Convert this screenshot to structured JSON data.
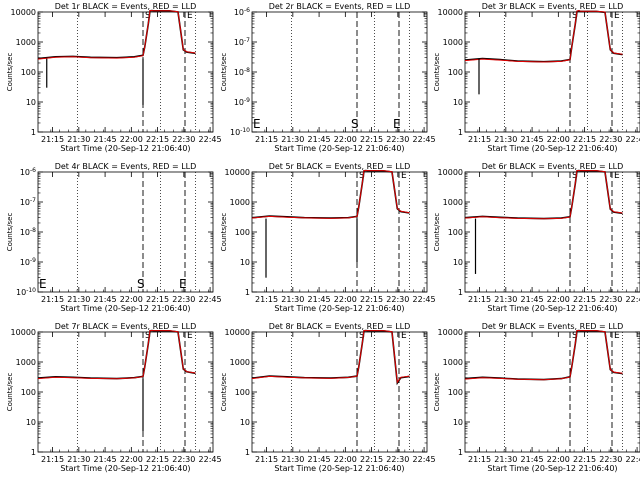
{
  "figure": {
    "x_axis_label": "Start Time (20-Sep-12 21:06:40)",
    "y_axis_label": "Counts/sec",
    "black_series_name": "Events",
    "red_series_name": "LLD",
    "line_colors": {
      "events": "#000000",
      "lld": "#e00000"
    },
    "x_ticks": [
      "21:15",
      "21:30",
      "21:45",
      "22:00",
      "22:15",
      "22:30",
      "22:45"
    ]
  },
  "chart_data": [
    {
      "type": "line",
      "title": "Det 1r BLACK = Events, RED = LLD",
      "scale": "log",
      "ylim": [
        1,
        10000
      ],
      "y_ticks": [
        "1",
        "10",
        "100",
        "1000",
        "10000"
      ],
      "markers": [
        "S",
        "E"
      ],
      "has_data": true,
      "x_minutes": [
        0,
        10,
        20,
        30,
        45,
        55,
        60,
        61,
        63,
        64,
        65,
        66,
        75,
        80,
        83,
        85,
        90
      ],
      "series": [
        {
          "name": "Events",
          "values": [
            280,
            320,
            330,
            310,
            300,
            320,
            360,
            700,
            4000,
            11000,
            11500,
            11000,
            11000,
            10000,
            550,
            460,
            420
          ]
        },
        {
          "name": "LLD",
          "values": [
            270,
            310,
            320,
            300,
            290,
            310,
            350,
            700,
            4100,
            11200,
            11600,
            11000,
            11000,
            10200,
            560,
            470,
            430
          ]
        }
      ],
      "dropouts": [
        {
          "x": 5,
          "y": 30
        },
        {
          "x": 60,
          "y": 8
        }
      ]
    },
    {
      "type": "line",
      "title": "Det 2r BLACK = Events, RED = LLD",
      "scale": "log",
      "ylim": [
        1e-10,
        1e-06
      ],
      "y_ticks": [
        "10^-10",
        "10^-9",
        "10^-8",
        "10^-7",
        "10^-6"
      ],
      "markers": [
        "S",
        "E"
      ],
      "has_data": false,
      "x_minutes": [],
      "series": []
    },
    {
      "type": "line",
      "title": "Det 3r BLACK = Events, RED = LLD",
      "scale": "log",
      "ylim": [
        1,
        10000
      ],
      "y_ticks": [
        "1",
        "10",
        "100",
        "1000",
        "10000"
      ],
      "markers": [
        "S",
        "E"
      ],
      "has_data": true,
      "x_minutes": [
        0,
        10,
        20,
        30,
        45,
        55,
        60,
        61,
        63,
        64,
        65,
        66,
        75,
        80,
        83,
        85,
        90
      ],
      "series": [
        {
          "name": "Events",
          "values": [
            250,
            280,
            260,
            230,
            220,
            230,
            260,
            700,
            4000,
            10500,
            11000,
            10500,
            10500,
            9800,
            550,
            420,
            380
          ]
        },
        {
          "name": "LLD",
          "values": [
            240,
            270,
            250,
            225,
            215,
            225,
            255,
            710,
            4100,
            10800,
            11200,
            10600,
            10600,
            10000,
            560,
            430,
            390
          ]
        }
      ],
      "dropouts": [
        {
          "x": 8,
          "y": 18
        }
      ]
    },
    {
      "type": "line",
      "title": "Det 4r BLACK = Events, RED = LLD",
      "scale": "log",
      "ylim": [
        1e-10,
        1e-06
      ],
      "y_ticks": [
        "10^-10",
        "10^-9",
        "10^-8",
        "10^-7",
        "10^-6"
      ],
      "markers": [
        "S",
        "E"
      ],
      "has_data": false,
      "x_minutes": [],
      "series": []
    },
    {
      "type": "line",
      "title": "Det 5r BLACK = Events, RED = LLD",
      "scale": "log",
      "ylim": [
        1,
        10000
      ],
      "y_ticks": [
        "1",
        "10",
        "100",
        "1000",
        "10000"
      ],
      "markers": [
        "S",
        "E"
      ],
      "has_data": true,
      "x_minutes": [
        0,
        10,
        20,
        30,
        45,
        55,
        60,
        61,
        63,
        64,
        65,
        66,
        75,
        80,
        83,
        85,
        90
      ],
      "series": [
        {
          "name": "Events",
          "values": [
            300,
            340,
            320,
            300,
            290,
            300,
            330,
            700,
            4200,
            11000,
            11500,
            11000,
            11000,
            10000,
            600,
            480,
            430
          ]
        },
        {
          "name": "LLD",
          "values": [
            290,
            330,
            310,
            295,
            285,
            295,
            325,
            710,
            4300,
            11200,
            11600,
            11100,
            11100,
            10200,
            610,
            490,
            440
          ]
        }
      ],
      "dropouts": [
        {
          "x": 8,
          "y": 3
        },
        {
          "x": 60,
          "y": 10
        }
      ]
    },
    {
      "type": "line",
      "title": "Det 6r BLACK = Events, RED = LLD",
      "scale": "log",
      "ylim": [
        1,
        10000
      ],
      "y_ticks": [
        "1",
        "10",
        "100",
        "1000",
        "10000"
      ],
      "markers": [
        "S",
        "E"
      ],
      "has_data": true,
      "x_minutes": [
        0,
        10,
        20,
        30,
        45,
        55,
        60,
        61,
        63,
        64,
        65,
        66,
        75,
        80,
        83,
        85,
        90
      ],
      "series": [
        {
          "name": "Events",
          "values": [
            300,
            330,
            310,
            290,
            280,
            290,
            320,
            700,
            4100,
            11000,
            11500,
            11000,
            11000,
            10000,
            580,
            460,
            420
          ]
        },
        {
          "name": "LLD",
          "values": [
            290,
            320,
            300,
            285,
            275,
            285,
            315,
            710,
            4200,
            11200,
            11600,
            11100,
            11100,
            10200,
            590,
            470,
            430
          ]
        }
      ],
      "dropouts": [
        {
          "x": 6,
          "y": 4
        }
      ]
    },
    {
      "type": "line",
      "title": "Det 7r BLACK = Events, RED = LLD",
      "scale": "log",
      "ylim": [
        1,
        10000
      ],
      "y_ticks": [
        "1",
        "10",
        "100",
        "1000",
        "10000"
      ],
      "markers": [
        "S",
        "E"
      ],
      "has_data": true,
      "x_minutes": [
        0,
        10,
        20,
        30,
        45,
        55,
        60,
        61,
        63,
        64,
        65,
        66,
        75,
        80,
        83,
        85,
        90
      ],
      "series": [
        {
          "name": "Events",
          "values": [
            290,
            320,
            310,
            290,
            280,
            300,
            330,
            700,
            4100,
            11000,
            11500,
            11000,
            11000,
            10000,
            580,
            470,
            420
          ]
        },
        {
          "name": "LLD",
          "values": [
            280,
            310,
            300,
            285,
            275,
            295,
            325,
            710,
            4200,
            11200,
            11600,
            11100,
            11100,
            10200,
            590,
            480,
            430
          ]
        }
      ],
      "dropouts": [
        {
          "x": 60,
          "y": 5
        }
      ]
    },
    {
      "type": "line",
      "title": "Det 8r BLACK = Events, RED = LLD",
      "scale": "log",
      "ylim": [
        1,
        10000
      ],
      "y_ticks": [
        "1",
        "10",
        "100",
        "1000",
        "10000"
      ],
      "markers": [
        "S",
        "E"
      ],
      "has_data": true,
      "x_minutes": [
        0,
        10,
        20,
        30,
        45,
        55,
        60,
        61,
        63,
        64,
        65,
        66,
        75,
        80,
        83,
        85,
        90
      ],
      "series": [
        {
          "name": "Events",
          "values": [
            290,
            340,
            320,
            300,
            290,
            310,
            340,
            700,
            4200,
            11000,
            11500,
            11000,
            11000,
            10000,
            200,
            300,
            330
          ]
        },
        {
          "name": "LLD",
          "values": [
            280,
            330,
            310,
            295,
            285,
            305,
            335,
            710,
            4300,
            11200,
            11600,
            11100,
            11100,
            10200,
            210,
            310,
            340
          ]
        }
      ],
      "dropouts": []
    },
    {
      "type": "line",
      "title": "Det 9r BLACK = Events, RED = LLD",
      "scale": "log",
      "ylim": [
        1,
        10000
      ],
      "y_ticks": [
        "1",
        "10",
        "100",
        "1000",
        "10000"
      ],
      "markers": [
        "S",
        "E"
      ],
      "has_data": true,
      "x_minutes": [
        0,
        10,
        20,
        30,
        45,
        55,
        60,
        61,
        63,
        64,
        65,
        66,
        75,
        80,
        83,
        85,
        90
      ],
      "series": [
        {
          "name": "Events",
          "values": [
            280,
            310,
            290,
            270,
            260,
            280,
            320,
            700,
            4000,
            11000,
            11500,
            11000,
            11000,
            10000,
            560,
            450,
            410
          ]
        },
        {
          "name": "LLD",
          "values": [
            270,
            300,
            285,
            265,
            255,
            275,
            315,
            710,
            4100,
            11200,
            11600,
            11100,
            11100,
            10200,
            570,
            460,
            420
          ]
        }
      ],
      "dropouts": []
    }
  ]
}
